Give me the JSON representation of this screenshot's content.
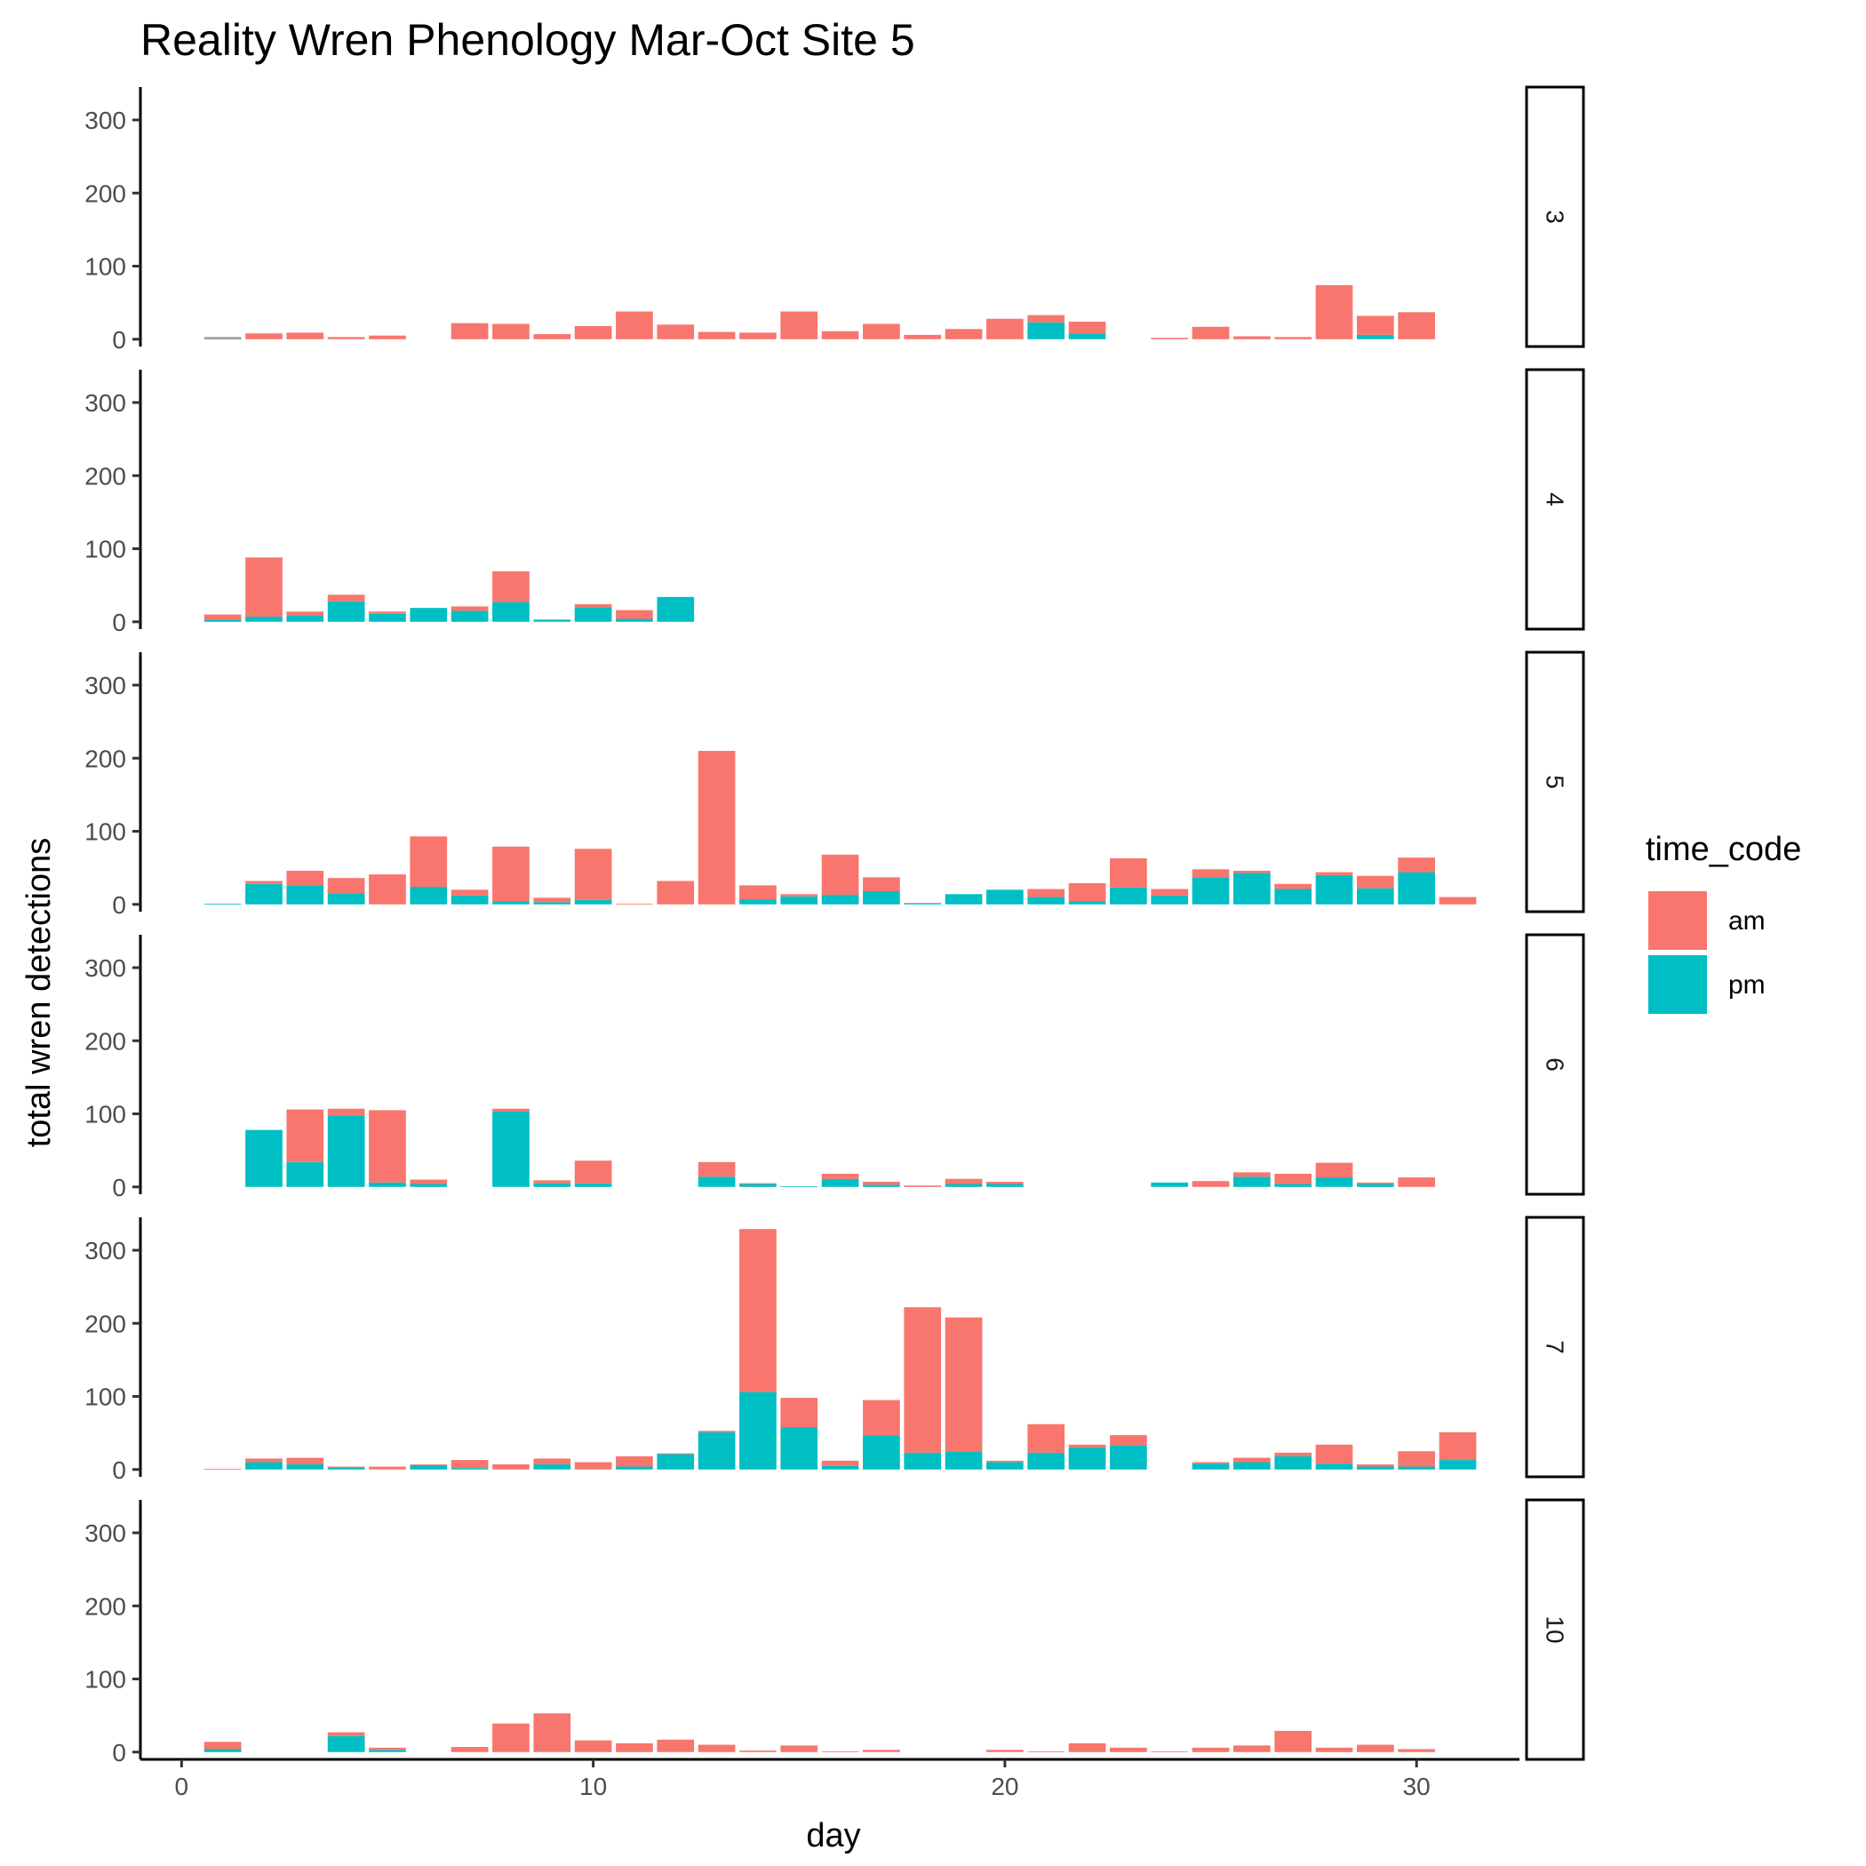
{
  "chart_data": {
    "type": "bar",
    "stacked": true,
    "title": "Reality Wren Phenology Mar-Oct Site 5",
    "xlabel": "day",
    "ylabel": "total wren detections",
    "xlim": [
      -1,
      32.5
    ],
    "ylim": [
      -10,
      345
    ],
    "x_ticks": [
      0,
      10,
      20,
      30
    ],
    "y_ticks": [
      0,
      100,
      200,
      300
    ],
    "legend": {
      "title": "time_code",
      "placement": "right",
      "entries": [
        {
          "key": "am",
          "label": "am",
          "color": "#F8766D"
        },
        {
          "key": "pm",
          "label": "pm",
          "color": "#00BFC4"
        }
      ]
    },
    "facets": [
      {
        "label": "3",
        "data": [
          {
            "day": 1,
            "am": 2,
            "pm": 1
          },
          {
            "day": 2,
            "am": 8,
            "pm": 0
          },
          {
            "day": 3,
            "am": 9,
            "pm": 0
          },
          {
            "day": 4,
            "am": 3,
            "pm": 0
          },
          {
            "day": 5,
            "am": 5,
            "pm": 0
          },
          {
            "day": 7,
            "am": 22,
            "pm": 0
          },
          {
            "day": 8,
            "am": 21,
            "pm": 0
          },
          {
            "day": 9,
            "am": 7,
            "pm": 0
          },
          {
            "day": 10,
            "am": 18,
            "pm": 0
          },
          {
            "day": 11,
            "am": 38,
            "pm": 0
          },
          {
            "day": 12,
            "am": 20,
            "pm": 0
          },
          {
            "day": 13,
            "am": 10,
            "pm": 0
          },
          {
            "day": 14,
            "am": 9,
            "pm": 0
          },
          {
            "day": 15,
            "am": 38,
            "pm": 0
          },
          {
            "day": 16,
            "am": 11,
            "pm": 0
          },
          {
            "day": 17,
            "am": 21,
            "pm": 0
          },
          {
            "day": 18,
            "am": 6,
            "pm": 0
          },
          {
            "day": 19,
            "am": 14,
            "pm": 0
          },
          {
            "day": 20,
            "am": 28,
            "pm": 0
          },
          {
            "day": 21,
            "am": 10,
            "pm": 23
          },
          {
            "day": 22,
            "am": 16,
            "pm": 8
          },
          {
            "day": 24,
            "am": 2,
            "pm": 0
          },
          {
            "day": 25,
            "am": 17,
            "pm": 0
          },
          {
            "day": 26,
            "am": 4,
            "pm": 0
          },
          {
            "day": 27,
            "am": 3,
            "pm": 0
          },
          {
            "day": 28,
            "am": 74,
            "pm": 0
          },
          {
            "day": 29,
            "am": 26,
            "pm": 6
          },
          {
            "day": 30,
            "am": 37,
            "pm": 0
          }
        ]
      },
      {
        "label": "4",
        "data": [
          {
            "day": 1,
            "am": 7,
            "pm": 3
          },
          {
            "day": 2,
            "am": 81,
            "pm": 7
          },
          {
            "day": 3,
            "am": 5,
            "pm": 9
          },
          {
            "day": 4,
            "am": 9,
            "pm": 28
          },
          {
            "day": 5,
            "am": 3,
            "pm": 11
          },
          {
            "day": 6,
            "am": 0,
            "pm": 19
          },
          {
            "day": 7,
            "am": 6,
            "pm": 15
          },
          {
            "day": 8,
            "am": 42,
            "pm": 27
          },
          {
            "day": 9,
            "am": 0,
            "pm": 3
          },
          {
            "day": 10,
            "am": 4,
            "pm": 20
          },
          {
            "day": 11,
            "am": 12,
            "pm": 4
          },
          {
            "day": 12,
            "am": 0,
            "pm": 34
          }
        ]
      },
      {
        "label": "5",
        "data": [
          {
            "day": 1,
            "am": 0,
            "pm": 1
          },
          {
            "day": 2,
            "am": 4,
            "pm": 28
          },
          {
            "day": 3,
            "am": 20,
            "pm": 26
          },
          {
            "day": 4,
            "am": 21,
            "pm": 15
          },
          {
            "day": 5,
            "am": 41,
            "pm": 0
          },
          {
            "day": 6,
            "am": 69,
            "pm": 24
          },
          {
            "day": 7,
            "am": 8,
            "pm": 12
          },
          {
            "day": 8,
            "am": 75,
            "pm": 4
          },
          {
            "day": 9,
            "am": 6,
            "pm": 3
          },
          {
            "day": 10,
            "am": 70,
            "pm": 6
          },
          {
            "day": 11,
            "am": 1,
            "pm": 0
          },
          {
            "day": 12,
            "am": 32,
            "pm": 0
          },
          {
            "day": 13,
            "am": 210,
            "pm": 0
          },
          {
            "day": 14,
            "am": 19,
            "pm": 7
          },
          {
            "day": 15,
            "am": 3,
            "pm": 11
          },
          {
            "day": 16,
            "am": 55,
            "pm": 13
          },
          {
            "day": 17,
            "am": 19,
            "pm": 18
          },
          {
            "day": 18,
            "am": 1,
            "pm": 1
          },
          {
            "day": 19,
            "am": 0,
            "pm": 14
          },
          {
            "day": 20,
            "am": 0,
            "pm": 20
          },
          {
            "day": 21,
            "am": 11,
            "pm": 10
          },
          {
            "day": 22,
            "am": 25,
            "pm": 4
          },
          {
            "day": 23,
            "am": 40,
            "pm": 23
          },
          {
            "day": 24,
            "am": 9,
            "pm": 12
          },
          {
            "day": 25,
            "am": 11,
            "pm": 37
          },
          {
            "day": 26,
            "am": 3,
            "pm": 43
          },
          {
            "day": 27,
            "am": 7,
            "pm": 21
          },
          {
            "day": 28,
            "am": 4,
            "pm": 40
          },
          {
            "day": 29,
            "am": 17,
            "pm": 22
          },
          {
            "day": 30,
            "am": 20,
            "pm": 44
          },
          {
            "day": 31,
            "am": 10,
            "pm": 0
          }
        ]
      },
      {
        "label": "6",
        "data": [
          {
            "day": 2,
            "am": 0,
            "pm": 78
          },
          {
            "day": 3,
            "am": 72,
            "pm": 34
          },
          {
            "day": 4,
            "am": 9,
            "pm": 98
          },
          {
            "day": 5,
            "am": 99,
            "pm": 6
          },
          {
            "day": 6,
            "am": 6,
            "pm": 4
          },
          {
            "day": 8,
            "am": 4,
            "pm": 103
          },
          {
            "day": 9,
            "am": 4,
            "pm": 5
          },
          {
            "day": 10,
            "am": 31,
            "pm": 5
          },
          {
            "day": 13,
            "am": 20,
            "pm": 14
          },
          {
            "day": 14,
            "am": 1,
            "pm": 4
          },
          {
            "day": 15,
            "am": 0,
            "pm": 1
          },
          {
            "day": 16,
            "am": 7,
            "pm": 11
          },
          {
            "day": 17,
            "am": 4,
            "pm": 3
          },
          {
            "day": 18,
            "am": 2,
            "pm": 0
          },
          {
            "day": 19,
            "am": 7,
            "pm": 4
          },
          {
            "day": 20,
            "am": 3,
            "pm": 4
          },
          {
            "day": 24,
            "am": 0,
            "pm": 6
          },
          {
            "day": 25,
            "am": 8,
            "pm": 0
          },
          {
            "day": 26,
            "am": 6,
            "pm": 14
          },
          {
            "day": 27,
            "am": 14,
            "pm": 4
          },
          {
            "day": 28,
            "am": 20,
            "pm": 13
          },
          {
            "day": 29,
            "am": 2,
            "pm": 4
          },
          {
            "day": 30,
            "am": 13,
            "pm": 0
          }
        ]
      },
      {
        "label": "7",
        "data": [
          {
            "day": 1,
            "am": 1,
            "pm": 0
          },
          {
            "day": 2,
            "am": 5,
            "pm": 10
          },
          {
            "day": 3,
            "am": 9,
            "pm": 7
          },
          {
            "day": 4,
            "am": 1,
            "pm": 3
          },
          {
            "day": 5,
            "am": 4,
            "pm": 0
          },
          {
            "day": 6,
            "am": 1,
            "pm": 6
          },
          {
            "day": 7,
            "am": 11,
            "pm": 2
          },
          {
            "day": 8,
            "am": 7,
            "pm": 0
          },
          {
            "day": 9,
            "am": 8,
            "pm": 7
          },
          {
            "day": 10,
            "am": 10,
            "pm": 0
          },
          {
            "day": 11,
            "am": 14,
            "pm": 4
          },
          {
            "day": 12,
            "am": 1,
            "pm": 21
          },
          {
            "day": 13,
            "am": 2,
            "pm": 51
          },
          {
            "day": 14,
            "am": 223,
            "pm": 106
          },
          {
            "day": 15,
            "am": 40,
            "pm": 58
          },
          {
            "day": 16,
            "am": 7,
            "pm": 5
          },
          {
            "day": 17,
            "am": 48,
            "pm": 47
          },
          {
            "day": 18,
            "am": 199,
            "pm": 23
          },
          {
            "day": 19,
            "am": 184,
            "pm": 24
          },
          {
            "day": 20,
            "am": 2,
            "pm": 10
          },
          {
            "day": 21,
            "am": 39,
            "pm": 23
          },
          {
            "day": 22,
            "am": 4,
            "pm": 30
          },
          {
            "day": 23,
            "am": 14,
            "pm": 33
          },
          {
            "day": 25,
            "am": 2,
            "pm": 8
          },
          {
            "day": 26,
            "am": 6,
            "pm": 10
          },
          {
            "day": 27,
            "am": 5,
            "pm": 18
          },
          {
            "day": 28,
            "am": 26,
            "pm": 8
          },
          {
            "day": 29,
            "am": 3,
            "pm": 4
          },
          {
            "day": 30,
            "am": 21,
            "pm": 4
          },
          {
            "day": 31,
            "am": 38,
            "pm": 13
          }
        ]
      },
      {
        "label": "10",
        "data": [
          {
            "day": 1,
            "am": 10,
            "pm": 4
          },
          {
            "day": 4,
            "am": 5,
            "pm": 22
          },
          {
            "day": 5,
            "am": 3,
            "pm": 3
          },
          {
            "day": 7,
            "am": 7,
            "pm": 0
          },
          {
            "day": 8,
            "am": 39,
            "pm": 0
          },
          {
            "day": 9,
            "am": 53,
            "pm": 0
          },
          {
            "day": 10,
            "am": 16,
            "pm": 0
          },
          {
            "day": 11,
            "am": 12,
            "pm": 0
          },
          {
            "day": 12,
            "am": 17,
            "pm": 0
          },
          {
            "day": 13,
            "am": 10,
            "pm": 0
          },
          {
            "day": 14,
            "am": 2,
            "pm": 0
          },
          {
            "day": 15,
            "am": 9,
            "pm": 0
          },
          {
            "day": 16,
            "am": 1,
            "pm": 0
          },
          {
            "day": 17,
            "am": 3,
            "pm": 0
          },
          {
            "day": 20,
            "am": 3,
            "pm": 0
          },
          {
            "day": 21,
            "am": 1,
            "pm": 0
          },
          {
            "day": 22,
            "am": 12,
            "pm": 0
          },
          {
            "day": 23,
            "am": 6,
            "pm": 0
          },
          {
            "day": 24,
            "am": 1,
            "pm": 0
          },
          {
            "day": 25,
            "am": 6,
            "pm": 0
          },
          {
            "day": 26,
            "am": 9,
            "pm": 0
          },
          {
            "day": 27,
            "am": 29,
            "pm": 0
          },
          {
            "day": 28,
            "am": 6,
            "pm": 0
          },
          {
            "day": 29,
            "am": 10,
            "pm": 0
          },
          {
            "day": 30,
            "am": 4,
            "pm": 0
          }
        ]
      }
    ]
  }
}
